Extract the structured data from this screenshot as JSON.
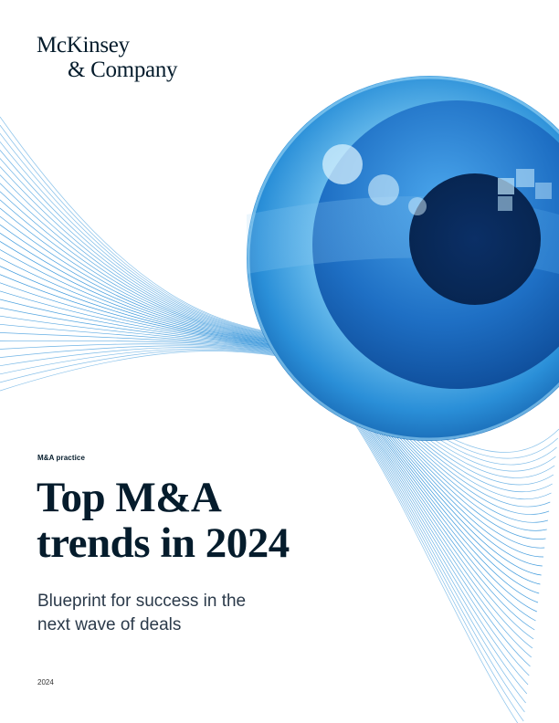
{
  "brand": {
    "line1": "McKinsey",
    "line2": "& Company"
  },
  "cover": {
    "practice": "M&A practice",
    "title_line1": "Top M&A",
    "title_line2": "trends in 2024",
    "subtitle_line1": "Blueprint for success in the",
    "subtitle_line2": "next wave of deals",
    "year": "2024"
  },
  "colors": {
    "navy": "#051c2c",
    "line_blue": "#2a8fd8",
    "eye_blue": "#1565b8"
  }
}
